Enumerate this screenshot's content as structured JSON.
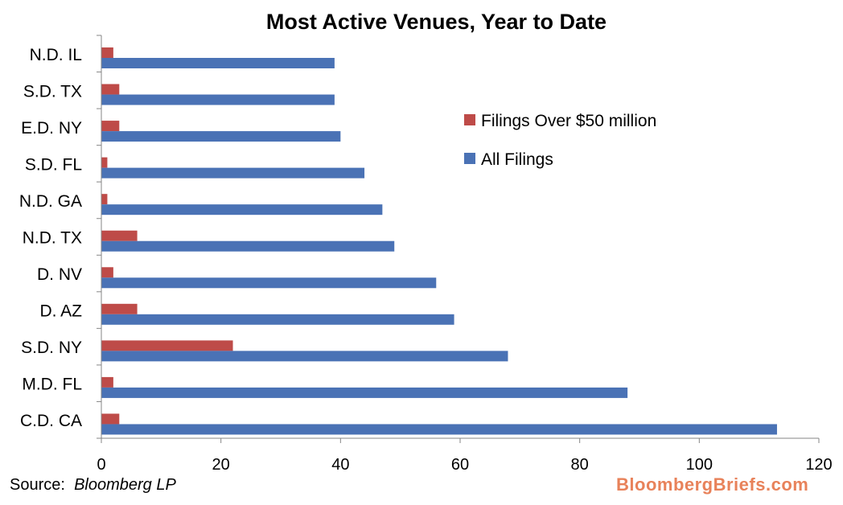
{
  "chart_data": {
    "type": "bar",
    "orientation": "horizontal",
    "title": "Most Active Venues, Year to Date",
    "categories": [
      "N.D. IL",
      "S.D. TX",
      "E.D. NY",
      "S.D. FL",
      "N.D. GA",
      "N.D. TX",
      "D. NV",
      "D. AZ",
      "S.D. NY",
      "M.D. FL",
      "C.D. CA"
    ],
    "series": [
      {
        "name": "Filings Over $50 million",
        "color": "#be4b48",
        "values": [
          2,
          3,
          3,
          1,
          1,
          6,
          2,
          6,
          22,
          2,
          3
        ]
      },
      {
        "name": "All Filings",
        "color": "#4a72b5",
        "values": [
          39,
          39,
          40,
          44,
          47,
          49,
          56,
          59,
          68,
          88,
          113
        ]
      }
    ],
    "xlim": [
      0,
      120
    ],
    "xticks": [
      0,
      20,
      40,
      60,
      80,
      100,
      120
    ],
    "xlabel": "",
    "ylabel": "",
    "grid": false,
    "legend_position": "right"
  },
  "source": {
    "label": "Source:",
    "name": "Bloomberg LP"
  },
  "brand": "BloombergBriefs.com"
}
